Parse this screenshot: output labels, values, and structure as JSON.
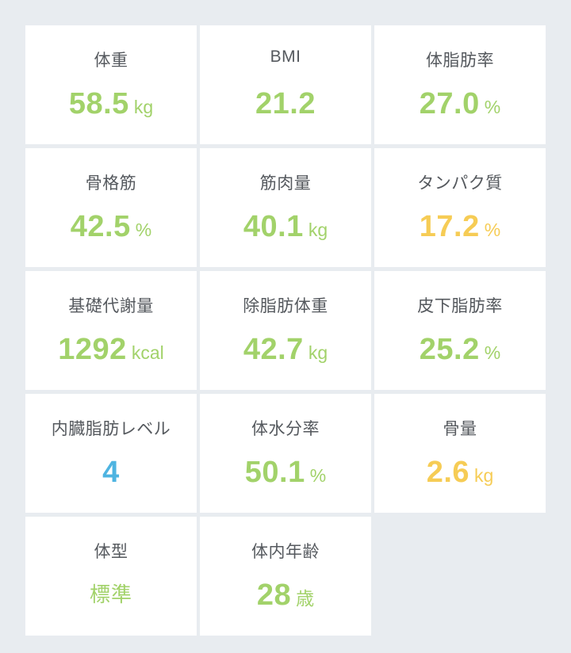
{
  "colors": {
    "good": "#a2d26a",
    "warning": "#f6cc55",
    "info": "#4eb4e1"
  },
  "metrics": [
    {
      "label": "体重",
      "value": "58.5",
      "unit": "kg",
      "status": "good"
    },
    {
      "label": "BMI",
      "value": "21.2",
      "unit": "",
      "status": "good"
    },
    {
      "label": "体脂肪率",
      "value": "27.0",
      "unit": "%",
      "status": "good"
    },
    {
      "label": "骨格筋",
      "value": "42.5",
      "unit": "%",
      "status": "good"
    },
    {
      "label": "筋肉量",
      "value": "40.1",
      "unit": "kg",
      "status": "good"
    },
    {
      "label": "タンパク質",
      "value": "17.2",
      "unit": "%",
      "status": "warning"
    },
    {
      "label": "基礎代謝量",
      "value": "1292",
      "unit": "kcal",
      "status": "good"
    },
    {
      "label": "除脂肪体重",
      "value": "42.7",
      "unit": "kg",
      "status": "good"
    },
    {
      "label": "皮下脂肪率",
      "value": "25.2",
      "unit": "%",
      "status": "good"
    },
    {
      "label": "内臓脂肪レベル",
      "value": "4",
      "unit": "",
      "status": "info"
    },
    {
      "label": "体水分率",
      "value": "50.1",
      "unit": "%",
      "status": "good"
    },
    {
      "label": "骨量",
      "value": "2.6",
      "unit": "kg",
      "status": "warning"
    },
    {
      "label": "体型",
      "value": "標準",
      "unit": "",
      "status": "good"
    },
    {
      "label": "体内年齢",
      "value": "28",
      "unit": "歳",
      "status": "good"
    }
  ]
}
